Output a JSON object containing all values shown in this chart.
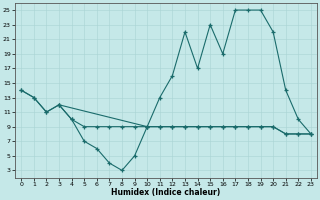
{
  "xlabel": "Humidex (Indice chaleur)",
  "bg_color": "#c5e8e8",
  "line_color": "#1a6b6b",
  "grid_color": "#aad4d4",
  "xlim": [
    -0.5,
    23.5
  ],
  "ylim": [
    2,
    26
  ],
  "xticks": [
    0,
    1,
    2,
    3,
    4,
    5,
    6,
    7,
    8,
    9,
    10,
    11,
    12,
    13,
    14,
    15,
    16,
    17,
    18,
    19,
    20,
    21,
    22,
    23
  ],
  "yticks": [
    3,
    5,
    7,
    9,
    11,
    13,
    15,
    17,
    19,
    21,
    23,
    25
  ],
  "upper_x": [
    0,
    1,
    2,
    3,
    10,
    11,
    12,
    13,
    14,
    15,
    16,
    17,
    18,
    19,
    20,
    21,
    22,
    23
  ],
  "upper_y": [
    14,
    13,
    11,
    12,
    9,
    13,
    16,
    22,
    17,
    23,
    19,
    25,
    25,
    25,
    22,
    14,
    10,
    8
  ],
  "valley_x": [
    0,
    1,
    2,
    3,
    4,
    5,
    6,
    7,
    8,
    9,
    10,
    11,
    12,
    13,
    14,
    15,
    16,
    17,
    18,
    19,
    20,
    21,
    22,
    23
  ],
  "valley_y": [
    14,
    13,
    11,
    12,
    10,
    7,
    6,
    4,
    3,
    5,
    9,
    9,
    9,
    9,
    9,
    9,
    9,
    9,
    9,
    9,
    9,
    8,
    8,
    8
  ],
  "flat_x": [
    3,
    4,
    5,
    6,
    7,
    8,
    9,
    10,
    11,
    12,
    13,
    14,
    15,
    16,
    17,
    18,
    19,
    20,
    21,
    22,
    23
  ],
  "flat_y": [
    12,
    10,
    9,
    9,
    9,
    9,
    9,
    9,
    9,
    9,
    9,
    9,
    9,
    9,
    9,
    9,
    9,
    9,
    8,
    8,
    8
  ]
}
